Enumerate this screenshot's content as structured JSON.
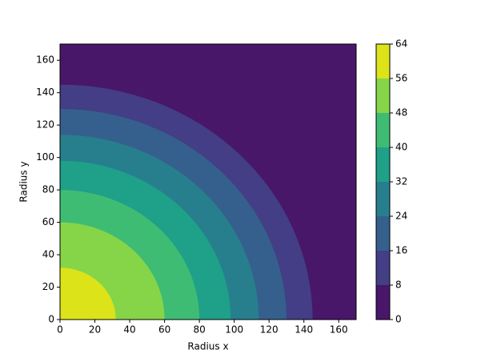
{
  "chart_data": {
    "type": "contour",
    "x_label": "Radius x",
    "y_label": "Radius y",
    "xlim": [
      0,
      170
    ],
    "ylim": [
      0,
      170
    ],
    "xticks": [
      0,
      20,
      40,
      60,
      80,
      100,
      120,
      140,
      160
    ],
    "yticks": [
      0,
      20,
      40,
      60,
      80,
      100,
      120,
      140,
      160
    ],
    "levels": [
      0,
      8,
      16,
      24,
      32,
      40,
      48,
      56,
      64
    ],
    "colors": [
      "#481769",
      "#433e85",
      "#35608d",
      "#277f8e",
      "#1fa088",
      "#3fbc73",
      "#86d549",
      "#dce319"
    ],
    "boundary_radii": [
      145,
      130,
      114,
      98,
      80,
      60,
      32
    ]
  }
}
